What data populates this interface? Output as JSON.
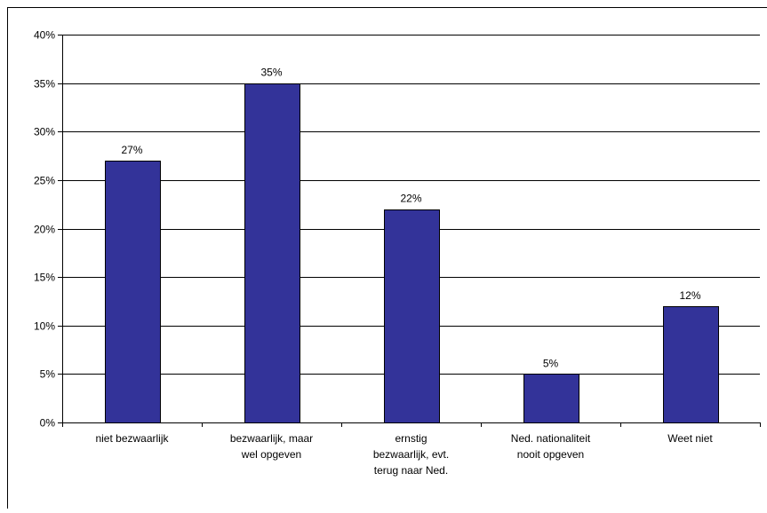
{
  "chart_data": {
    "type": "bar",
    "categories": [
      [
        "niet bezwaarlijk"
      ],
      [
        "bezwaarlijk, maar",
        "wel opgeven"
      ],
      [
        "ernstig",
        "bezwaarlijk, evt.",
        "terug naar Ned."
      ],
      [
        "Ned. nationaliteit",
        "nooit opgeven"
      ],
      [
        "Weet niet"
      ]
    ],
    "values": [
      27,
      35,
      22,
      5,
      12
    ],
    "data_labels": [
      "27%",
      "35%",
      "22%",
      "5%",
      "12%"
    ],
    "ylim": [
      0,
      40
    ],
    "yticks": [
      0,
      5,
      10,
      15,
      20,
      25,
      30,
      35,
      40
    ],
    "ytick_labels": [
      "0%",
      "5%",
      "10%",
      "15%",
      "20%",
      "25%",
      "30%",
      "35%",
      "40%"
    ],
    "grid": true,
    "legend": "none",
    "bar_color": "#333399",
    "bar_edge_color": "#000000"
  }
}
